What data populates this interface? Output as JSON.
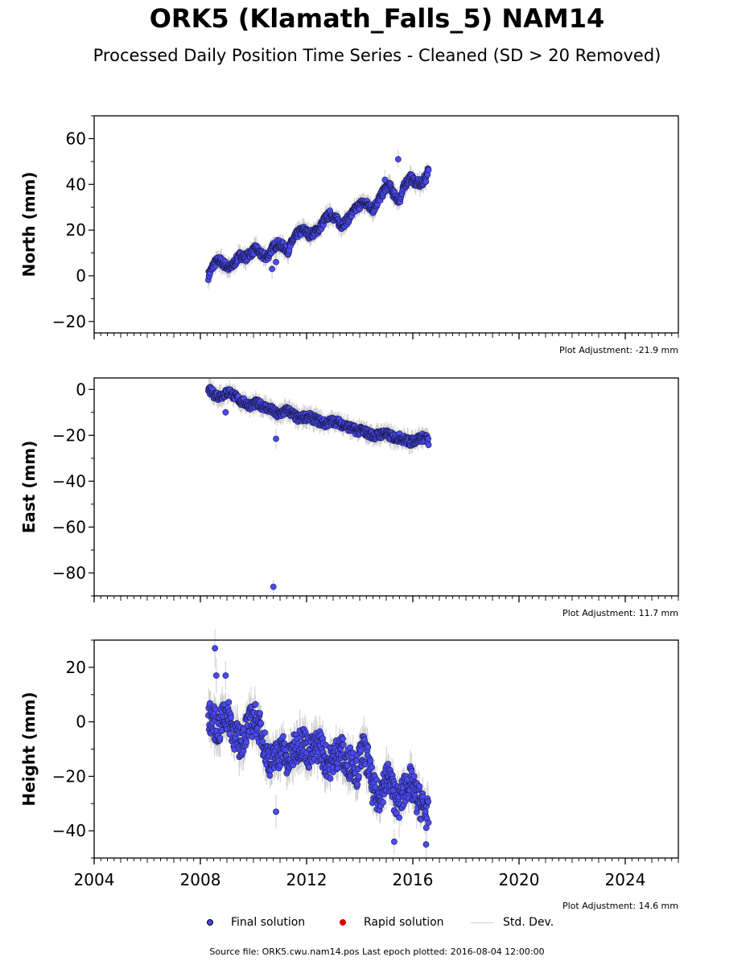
{
  "title": "ORK5 (Klamath_Falls_5) NAM14",
  "subtitle": "Processed Daily Position Time Series - Cleaned (SD > 20 Removed)",
  "legend": {
    "final": {
      "label": "Final solution",
      "color": "#4a4af0"
    },
    "rapid": {
      "label": "Rapid solution",
      "color": "#dd0000"
    },
    "std": {
      "label": "Std. Dev.",
      "color": "#cfcfcf"
    }
  },
  "source_text": "Source file: ORK5.cwu.nam14.pos  Last epoch plotted: 2016-08-04 12:00:00",
  "chart_data": [
    {
      "type": "scatter",
      "ylabel": "North (mm)",
      "adjustment": "Plot Adjustment: -21.9 mm",
      "xlim": [
        2004,
        2026
      ],
      "ylim": [
        -25,
        70
      ],
      "yticks": [
        -20,
        0,
        20,
        40,
        60
      ],
      "xticks": [
        2004,
        2008,
        2012,
        2016,
        2020,
        2024
      ],
      "show_xticklabels": false,
      "x": [
        2008.3,
        2008.5,
        2008.7,
        2008.9,
        2009.1,
        2009.3,
        2009.5,
        2009.7,
        2009.9,
        2010.1,
        2010.3,
        2010.5,
        2010.7,
        2010.9,
        2011.1,
        2011.3,
        2011.5,
        2011.7,
        2011.9,
        2012.1,
        2012.3,
        2012.5,
        2012.7,
        2012.9,
        2013.1,
        2013.3,
        2013.5,
        2013.7,
        2013.9,
        2014.1,
        2014.3,
        2014.5,
        2014.7,
        2014.9,
        2015.1,
        2015.3,
        2015.5,
        2015.7,
        2015.9,
        2016.1,
        2016.3,
        2016.5,
        2016.6
      ],
      "y": [
        0,
        5,
        7,
        5,
        3,
        6,
        9,
        8,
        10,
        12,
        9,
        8,
        12,
        14,
        13,
        11,
        16,
        19,
        20,
        18,
        19,
        21,
        25,
        27,
        25,
        22,
        24,
        27,
        30,
        32,
        31,
        29,
        33,
        37,
        40,
        35,
        33,
        40,
        43,
        41,
        40,
        43,
        48
      ],
      "outliers": [
        [
          2010.7,
          3
        ],
        [
          2010.85,
          6
        ],
        [
          2015.45,
          51
        ],
        [
          2014.95,
          42
        ]
      ]
    },
    {
      "type": "scatter",
      "ylabel": "East (mm)",
      "adjustment": "Plot Adjustment: 11.7 mm",
      "xlim": [
        2004,
        2026
      ],
      "ylim": [
        -90,
        5
      ],
      "yticks": [
        -80,
        -60,
        -40,
        -20,
        0
      ],
      "xticks": [
        2004,
        2008,
        2012,
        2016,
        2020,
        2024
      ],
      "show_xticklabels": false,
      "x": [
        2008.3,
        2008.5,
        2008.7,
        2008.9,
        2009.1,
        2009.3,
        2009.5,
        2009.7,
        2009.9,
        2010.1,
        2010.3,
        2010.5,
        2010.7,
        2010.9,
        2011.1,
        2011.3,
        2011.5,
        2011.7,
        2011.9,
        2012.1,
        2012.3,
        2012.5,
        2012.7,
        2012.9,
        2013.1,
        2013.3,
        2013.5,
        2013.7,
        2013.9,
        2014.1,
        2014.3,
        2014.5,
        2014.7,
        2014.9,
        2015.1,
        2015.3,
        2015.5,
        2015.7,
        2015.9,
        2016.1,
        2016.3,
        2016.5,
        2016.6
      ],
      "y": [
        0,
        -2,
        -3,
        -2,
        -1,
        -3,
        -5,
        -6,
        -7,
        -6,
        -7,
        -8,
        -9,
        -11,
        -10,
        -9,
        -11,
        -13,
        -12,
        -12,
        -13,
        -14,
        -15,
        -14,
        -14,
        -15,
        -16,
        -17,
        -18,
        -18,
        -19,
        -20,
        -20,
        -19,
        -20,
        -21,
        -21,
        -22,
        -23,
        -22,
        -21,
        -21,
        -23
      ],
      "outliers": [
        [
          2010.85,
          -21.5
        ],
        [
          2010.75,
          -86
        ],
        [
          2008.95,
          -10
        ]
      ]
    },
    {
      "type": "scatter",
      "ylabel": "Height (mm)",
      "adjustment": "Plot Adjustment: 14.6 mm",
      "xlim": [
        2004,
        2026
      ],
      "ylim": [
        -50,
        30
      ],
      "yticks": [
        -40,
        -20,
        0,
        20
      ],
      "xticks": [
        2004,
        2008,
        2012,
        2016,
        2020,
        2024
      ],
      "show_xticklabels": true,
      "x": [
        2008.3,
        2008.5,
        2008.7,
        2008.9,
        2009.1,
        2009.3,
        2009.5,
        2009.7,
        2009.9,
        2010.1,
        2010.3,
        2010.5,
        2010.7,
        2010.9,
        2011.1,
        2011.3,
        2011.5,
        2011.7,
        2011.9,
        2012.1,
        2012.3,
        2012.5,
        2012.7,
        2012.9,
        2013.1,
        2013.3,
        2013.5,
        2013.7,
        2013.9,
        2014.1,
        2014.3,
        2014.5,
        2014.7,
        2014.9,
        2015.1,
        2015.3,
        2015.5,
        2015.7,
        2015.9,
        2016.1,
        2016.3,
        2016.5,
        2016.6
      ],
      "y": [
        2,
        0,
        -3,
        3,
        1,
        -5,
        -8,
        -3,
        0,
        1,
        -4,
        -12,
        -15,
        -12,
        -10,
        -15,
        -11,
        -8,
        -7,
        -12,
        -10,
        -8,
        -14,
        -15,
        -12,
        -10,
        -16,
        -14,
        -18,
        -10,
        -14,
        -25,
        -28,
        -23,
        -20,
        -27,
        -30,
        -24,
        -22,
        -27,
        -30,
        -33,
        -35
      ],
      "outliers": [
        [
          2008.55,
          27
        ],
        [
          2008.6,
          17
        ],
        [
          2008.95,
          17
        ],
        [
          2010.85,
          -33
        ],
        [
          2015.3,
          -44
        ],
        [
          2016.5,
          -45
        ]
      ]
    }
  ]
}
